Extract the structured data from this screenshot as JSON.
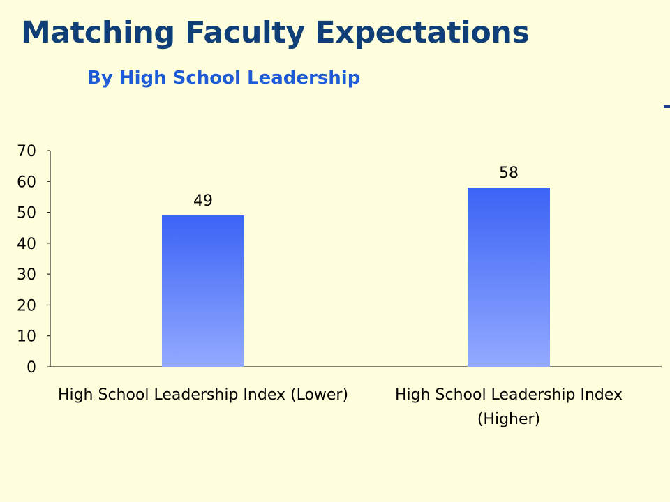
{
  "title": "Matching Faculty Expectations",
  "subtitle": "By High School Leadership",
  "colors": {
    "background": "#FFFFDD",
    "title": "#0F3F76",
    "subtitle": "#1F5BD7",
    "bar_top": "#3B63F5",
    "bar_bottom": "#93AAFF"
  },
  "chart_data": {
    "type": "bar",
    "categories": [
      [
        "High School Leadership Index (Lower)"
      ],
      [
        "High School Leadership Index",
        "(Higher)"
      ]
    ],
    "values": [
      49,
      58
    ],
    "data_labels": [
      "49",
      "58"
    ],
    "yticks": [
      "0",
      "10",
      "20",
      "30",
      "40",
      "50",
      "60",
      "70"
    ],
    "ylim": [
      0,
      70
    ],
    "grid": false,
    "legend": "none"
  }
}
